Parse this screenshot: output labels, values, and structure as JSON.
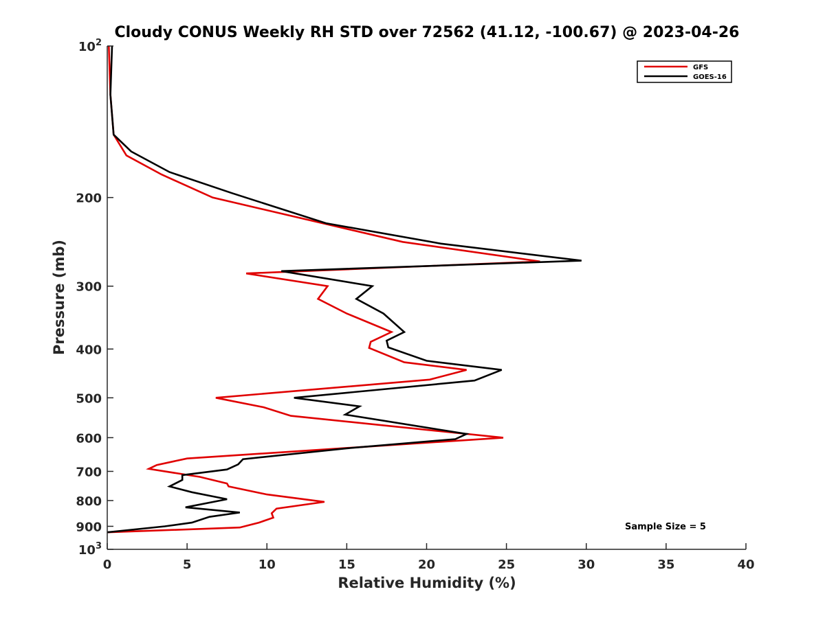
{
  "chart_data": {
    "type": "line",
    "title": "Cloudy CONUS Weekly RH STD over 72562 (41.12, -100.67) @ 2023-04-26",
    "xlabel": "Relative Humidity (%)",
    "ylabel": "Pressure (mb)",
    "xlim": [
      0,
      40
    ],
    "ylim": [
      100,
      1000
    ],
    "yscale": "log",
    "y_reversed": true,
    "xticks": [
      0,
      5,
      10,
      15,
      20,
      25,
      30,
      35,
      40
    ],
    "xtick_labels": [
      "0",
      "5",
      "10",
      "15",
      "20",
      "25",
      "30",
      "35",
      "40"
    ],
    "yticks": [
      100,
      200,
      300,
      400,
      500,
      600,
      700,
      800,
      900,
      1000
    ],
    "ytick_labels": [
      {
        "base": "10",
        "exp": "2"
      },
      {
        "base": "200",
        "exp": ""
      },
      {
        "base": "300",
        "exp": ""
      },
      {
        "base": "400",
        "exp": ""
      },
      {
        "base": "500",
        "exp": ""
      },
      {
        "base": "600",
        "exp": ""
      },
      {
        "base": "700",
        "exp": ""
      },
      {
        "base": "800",
        "exp": ""
      },
      {
        "base": "900",
        "exp": ""
      },
      {
        "base": "10",
        "exp": "3"
      }
    ],
    "grid": false,
    "legend_position": "top-right",
    "annotation": "Sample Size = 5",
    "series": [
      {
        "name": "GFS",
        "color": "#e00000",
        "x": [
          0.1,
          0.2,
          0.4,
          1.2,
          3.4,
          6.6,
          18.5,
          27.1,
          8.7,
          13.8,
          13.2,
          15.0,
          17.8,
          16.5,
          16.4,
          18.6,
          22.5,
          20.2,
          6.8,
          9.8,
          11.5,
          24.8,
          5.0,
          3.1,
          2.6,
          5.8,
          7.5,
          7.6,
          10.0,
          13.6,
          10.6,
          10.3,
          10.4,
          9.5,
          8.3,
          0.0
        ],
        "y": [
          100,
          125,
          150,
          165,
          180,
          200,
          245,
          268,
          283,
          300,
          318,
          340,
          370,
          387,
          398,
          425,
          440,
          460,
          500,
          522,
          543,
          600,
          660,
          680,
          692,
          718,
          740,
          750,
          778,
          805,
          830,
          848,
          865,
          885,
          905,
          925
        ]
      },
      {
        "name": "GOES-16",
        "color": "#000000",
        "x": [
          0.3,
          0.2,
          0.4,
          1.5,
          3.9,
          7.8,
          13.7,
          20.9,
          29.7,
          10.9,
          16.6,
          15.6,
          17.3,
          18.6,
          17.5,
          17.6,
          20.0,
          24.7,
          23.0,
          11.7,
          15.8,
          14.9,
          22.5,
          21.8,
          15.0,
          8.5,
          8.2,
          7.5,
          4.7,
          4.7,
          3.9,
          5.3,
          7.5,
          4.9,
          8.3,
          6.4,
          5.3,
          3.6,
          0.0
        ],
        "y": [
          100,
          125,
          150,
          162,
          178,
          196,
          225,
          247,
          267,
          280,
          300,
          318,
          340,
          370,
          385,
          397,
          422,
          440,
          462,
          500,
          520,
          540,
          590,
          604,
          630,
          662,
          678,
          694,
          712,
          728,
          750,
          770,
          795,
          825,
          845,
          862,
          885,
          900,
          925
        ]
      }
    ]
  }
}
